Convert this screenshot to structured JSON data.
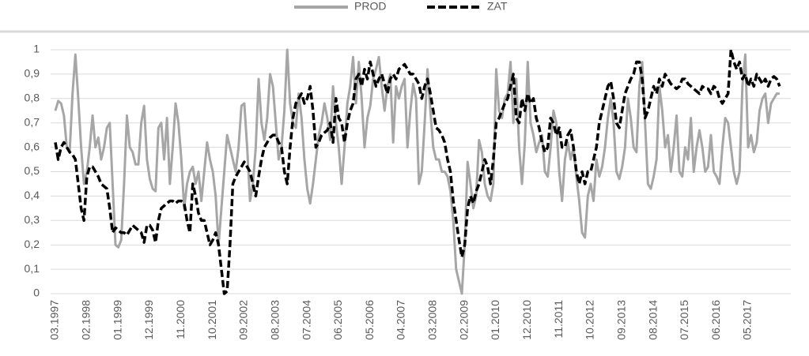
{
  "chart_data": {
    "type": "line",
    "categories": [
      "03.1997",
      null,
      null,
      null,
      null,
      null,
      null,
      null,
      null,
      null,
      null,
      "02.1998",
      null,
      null,
      null,
      null,
      null,
      null,
      null,
      null,
      null,
      null,
      "01.1999",
      null,
      null,
      null,
      null,
      null,
      null,
      null,
      null,
      null,
      null,
      "12.1999",
      null,
      null,
      null,
      null,
      null,
      null,
      null,
      null,
      null,
      null,
      "11.2000",
      null,
      null,
      null,
      null,
      null,
      null,
      null,
      null,
      null,
      null,
      "10.2001",
      null,
      null,
      null,
      null,
      null,
      null,
      null,
      null,
      null,
      null,
      "09.2002",
      null,
      null,
      null,
      null,
      null,
      null,
      null,
      null,
      null,
      null,
      "08.2003",
      null,
      null,
      null,
      null,
      null,
      null,
      null,
      null,
      null,
      null,
      "07.2004",
      null,
      null,
      null,
      null,
      null,
      null,
      null,
      null,
      null,
      null,
      "06.2005",
      null,
      null,
      null,
      null,
      null,
      null,
      null,
      null,
      null,
      null,
      "05.2006",
      null,
      null,
      null,
      null,
      null,
      null,
      null,
      null,
      null,
      null,
      "04.2007",
      null,
      null,
      null,
      null,
      null,
      null,
      null,
      null,
      null,
      null,
      "03.2008",
      null,
      null,
      null,
      null,
      null,
      null,
      null,
      null,
      null,
      null,
      "02.2009",
      null,
      null,
      null,
      null,
      null,
      null,
      null,
      null,
      null,
      null,
      "01.2010",
      null,
      null,
      null,
      null,
      null,
      null,
      null,
      null,
      null,
      null,
      "12.2010",
      null,
      null,
      null,
      null,
      null,
      null,
      null,
      null,
      null,
      null,
      "11.2011",
      null,
      null,
      null,
      null,
      null,
      null,
      null,
      null,
      null,
      null,
      "10.2012",
      null,
      null,
      null,
      null,
      null,
      null,
      null,
      null,
      null,
      null,
      "09.2013",
      null,
      null,
      null,
      null,
      null,
      null,
      null,
      null,
      null,
      null,
      "08.2014",
      null,
      null,
      null,
      null,
      null,
      null,
      null,
      null,
      null,
      null,
      "07.2015",
      null,
      null,
      null,
      null,
      null,
      null,
      null,
      null,
      null,
      null,
      "06.2016",
      null,
      null,
      null,
      null,
      null,
      null,
      null,
      null,
      null,
      null,
      "05.2017",
      null,
      null,
      null,
      null,
      null,
      null,
      null,
      null,
      null,
      null,
      null
    ],
    "series": [
      {
        "name": "PROD",
        "color": "#a6a6a6",
        "dashed": false,
        "values": [
          0.75,
          0.79,
          0.78,
          0.73,
          0.6,
          0.58,
          0.82,
          0.98,
          0.8,
          0.6,
          0.45,
          0.5,
          0.6,
          0.73,
          0.6,
          0.64,
          0.55,
          0.6,
          0.68,
          0.7,
          0.45,
          0.2,
          0.19,
          0.22,
          0.45,
          0.73,
          0.6,
          0.58,
          0.53,
          0.53,
          0.7,
          0.77,
          0.55,
          0.47,
          0.43,
          0.42,
          0.68,
          0.7,
          0.55,
          0.72,
          0.45,
          0.6,
          0.78,
          0.7,
          0.55,
          0.35,
          0.45,
          0.5,
          0.52,
          0.45,
          0.5,
          0.38,
          0.5,
          0.62,
          0.55,
          0.5,
          0.4,
          0.2,
          0.35,
          0.5,
          0.65,
          0.6,
          0.55,
          0.5,
          0.6,
          0.77,
          0.78,
          0.6,
          0.38,
          0.45,
          0.6,
          0.88,
          0.7,
          0.63,
          0.72,
          0.9,
          0.85,
          0.7,
          0.55,
          0.6,
          0.75,
          1.0,
          0.78,
          0.7,
          0.68,
          0.82,
          0.72,
          0.55,
          0.43,
          0.37,
          0.45,
          0.55,
          0.65,
          0.7,
          0.78,
          0.72,
          0.63,
          0.85,
          0.7,
          0.6,
          0.45,
          0.6,
          0.78,
          0.85,
          0.97,
          0.78,
          0.95,
          0.8,
          0.6,
          0.72,
          0.77,
          0.88,
          0.92,
          0.97,
          0.85,
          0.75,
          0.85,
          0.9,
          0.62,
          0.85,
          0.8,
          0.85,
          0.88,
          0.6,
          0.75,
          0.86,
          0.8,
          0.45,
          0.5,
          0.7,
          0.92,
          0.75,
          0.6,
          0.55,
          0.55,
          0.5,
          0.5,
          0.48,
          0.42,
          0.3,
          0.1,
          0.05,
          0.0,
          0.2,
          0.54,
          0.45,
          0.35,
          0.4,
          0.63,
          0.58,
          0.45,
          0.4,
          0.38,
          0.45,
          0.92,
          0.75,
          0.72,
          0.8,
          0.82,
          0.95,
          0.7,
          0.88,
          0.6,
          0.45,
          0.62,
          0.95,
          0.7,
          0.65,
          0.58,
          0.62,
          0.65,
          0.5,
          0.48,
          0.6,
          0.75,
          0.7,
          0.5,
          0.38,
          0.55,
          0.62,
          0.55,
          0.6,
          0.48,
          0.38,
          0.25,
          0.23,
          0.4,
          0.45,
          0.38,
          0.55,
          0.48,
          0.52,
          0.6,
          0.72,
          0.8,
          0.7,
          0.5,
          0.47,
          0.52,
          0.6,
          0.8,
          0.72,
          0.6,
          0.58,
          0.85,
          0.95,
          0.7,
          0.45,
          0.43,
          0.48,
          0.55,
          0.85,
          0.75,
          0.6,
          0.65,
          0.5,
          0.6,
          0.73,
          0.5,
          0.48,
          0.6,
          0.55,
          0.72,
          0.5,
          0.6,
          0.67,
          0.6,
          0.5,
          0.52,
          0.65,
          0.5,
          0.48,
          0.45,
          0.6,
          0.72,
          0.7,
          0.6,
          0.5,
          0.45,
          0.5,
          0.85,
          0.98,
          0.6,
          0.65,
          0.58,
          0.62,
          0.75,
          0.8,
          0.82,
          0.7,
          0.78,
          0.8,
          0.82,
          0.82
        ]
      },
      {
        "name": "ZAT",
        "color": "#000000",
        "dashed": true,
        "values": [
          0.62,
          0.55,
          0.6,
          0.62,
          0.6,
          0.58,
          0.57,
          0.55,
          0.45,
          0.35,
          0.3,
          0.48,
          0.52,
          0.52,
          0.5,
          0.48,
          0.45,
          0.44,
          0.43,
          0.35,
          0.25,
          0.27,
          0.26,
          0.25,
          0.25,
          0.24,
          0.26,
          0.28,
          0.27,
          0.26,
          0.25,
          0.21,
          0.28,
          0.28,
          0.26,
          0.21,
          0.3,
          0.35,
          0.36,
          0.37,
          0.38,
          0.38,
          0.37,
          0.38,
          0.38,
          0.37,
          0.3,
          0.25,
          0.45,
          0.4,
          0.33,
          0.3,
          0.3,
          0.25,
          0.2,
          0.22,
          0.25,
          0.2,
          0.1,
          0.0,
          0.01,
          0.2,
          0.45,
          0.48,
          0.5,
          0.52,
          0.54,
          0.52,
          0.5,
          0.45,
          0.4,
          0.48,
          0.55,
          0.6,
          0.62,
          0.64,
          0.65,
          0.65,
          0.62,
          0.6,
          0.5,
          0.45,
          0.6,
          0.72,
          0.78,
          0.8,
          0.82,
          0.78,
          0.8,
          0.85,
          0.75,
          0.6,
          0.62,
          0.65,
          0.66,
          0.67,
          0.7,
          0.62,
          0.8,
          0.72,
          0.7,
          0.62,
          0.7,
          0.75,
          0.78,
          0.88,
          0.9,
          0.85,
          0.92,
          0.88,
          0.95,
          0.9,
          0.85,
          0.88,
          0.9,
          0.86,
          0.82,
          0.88,
          0.9,
          0.88,
          0.92,
          0.93,
          0.94,
          0.92,
          0.9,
          0.9,
          0.88,
          0.86,
          0.8,
          0.85,
          0.88,
          0.82,
          0.75,
          0.68,
          0.67,
          0.65,
          0.62,
          0.55,
          0.5,
          0.38,
          0.3,
          0.22,
          0.15,
          0.2,
          0.35,
          0.4,
          0.37,
          0.42,
          0.45,
          0.5,
          0.55,
          0.52,
          0.45,
          0.55,
          0.7,
          0.72,
          0.75,
          0.78,
          0.8,
          0.85,
          0.9,
          0.72,
          0.7,
          0.8,
          0.75,
          0.82,
          0.78,
          0.8,
          0.72,
          0.68,
          0.62,
          0.58,
          0.6,
          0.72,
          0.7,
          0.65,
          0.68,
          0.6,
          0.6,
          0.65,
          0.67,
          0.6,
          0.5,
          0.45,
          0.5,
          0.45,
          0.5,
          0.5,
          0.55,
          0.6,
          0.7,
          0.75,
          0.8,
          0.85,
          0.87,
          0.8,
          0.7,
          0.68,
          0.75,
          0.82,
          0.85,
          0.88,
          0.9,
          0.95,
          0.95,
          0.88,
          0.72,
          0.75,
          0.8,
          0.85,
          0.82,
          0.88,
          0.85,
          0.9,
          0.88,
          0.86,
          0.85,
          0.84,
          0.85,
          0.88,
          0.88,
          0.86,
          0.85,
          0.84,
          0.83,
          0.82,
          0.85,
          0.84,
          0.84,
          0.82,
          0.85,
          0.84,
          0.8,
          0.78,
          0.8,
          0.82,
          1.0,
          0.95,
          0.92,
          0.95,
          0.88,
          0.9,
          0.85,
          0.88,
          0.85,
          0.9,
          0.88,
          0.86,
          0.88,
          0.85,
          0.88,
          0.89,
          0.88,
          0.85
        ]
      }
    ],
    "ylim": [
      0,
      1
    ],
    "yticks": [
      0,
      {
        "value": 0.1,
        "label": "0,1"
      },
      {
        "value": 0.2,
        "label": "0,2"
      },
      {
        "value": 0.3,
        "label": "0,3"
      },
      {
        "value": 0.4,
        "label": "0,4"
      },
      {
        "value": 0.5,
        "label": "0,5"
      },
      {
        "value": 0.6,
        "label": "0,6"
      },
      {
        "value": 0.7,
        "label": "0,7"
      },
      {
        "value": 0.8,
        "label": "0,8"
      },
      {
        "value": 0.9,
        "label": "0,9"
      },
      1
    ],
    "grid": true,
    "legend": "top"
  }
}
